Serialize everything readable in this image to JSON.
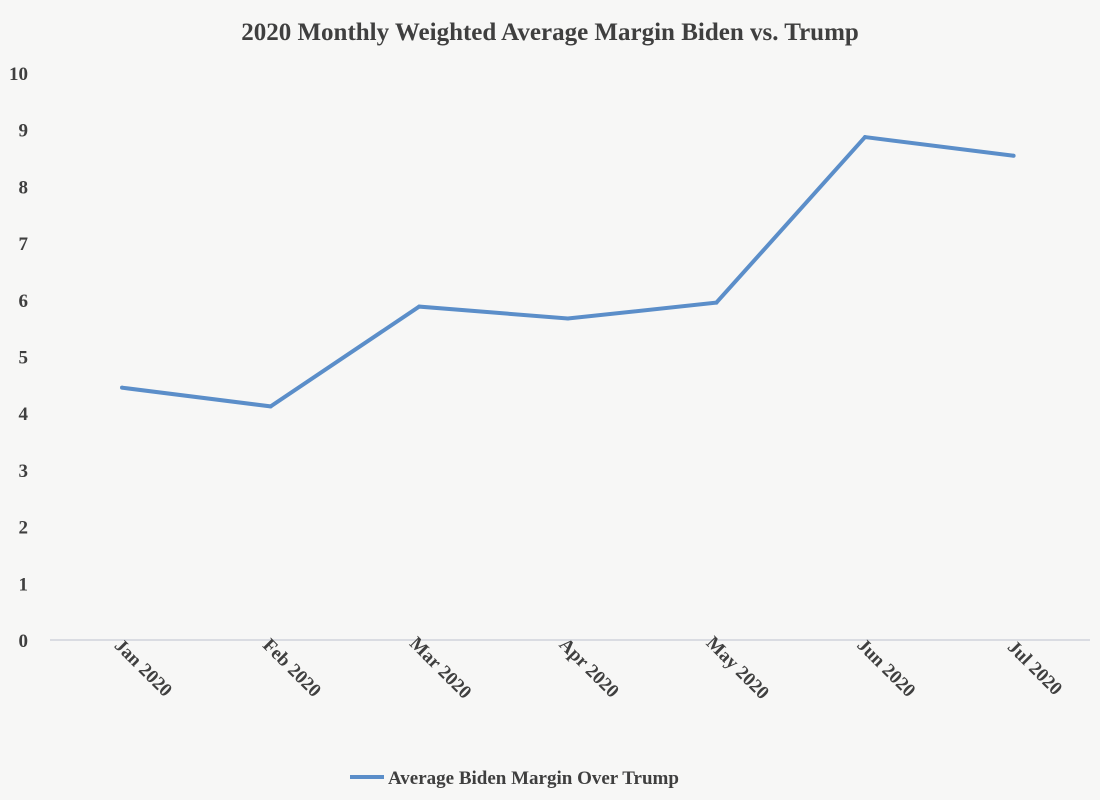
{
  "chart_data": {
    "type": "line",
    "title": "2020 Monthly Weighted Average Margin Biden vs. Trump",
    "xlabel": "",
    "ylabel": "",
    "categories": [
      "Jan 2020",
      "Feb 2020",
      "Mar 2020",
      "Apr 2020",
      "May 2020",
      "Jun 2020",
      "Jul 2020"
    ],
    "series": [
      {
        "name": "Average Biden Margin Over Trump",
        "values": [
          4.45,
          4.12,
          5.88,
          5.67,
          5.95,
          8.87,
          8.54
        ],
        "color": "#5b8ec9"
      }
    ],
    "ylim": [
      0,
      10
    ],
    "yticks": [
      0,
      1,
      2,
      3,
      4,
      5,
      6,
      7,
      8,
      9,
      10
    ],
    "grid": false,
    "legend": "bottom",
    "axis_color": "#d0d4dc"
  }
}
